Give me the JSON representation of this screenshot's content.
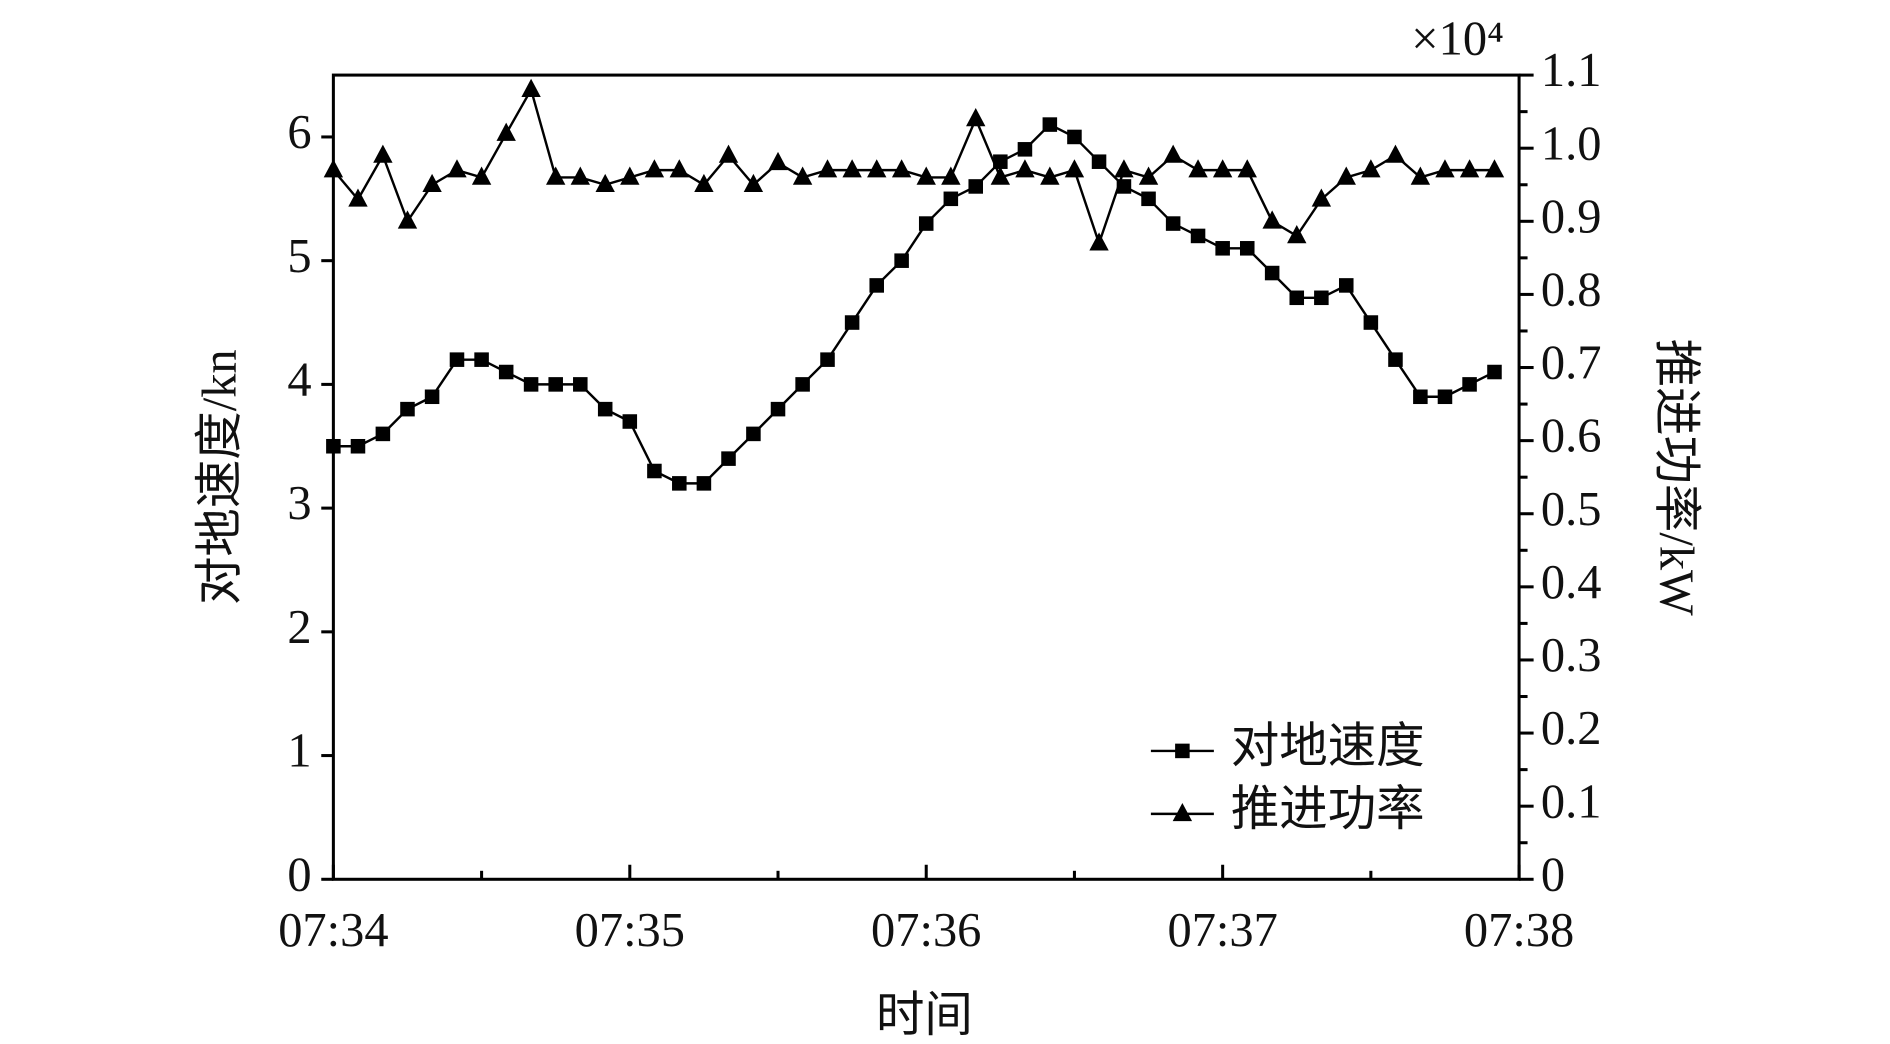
{
  "chart_data": {
    "type": "line",
    "xlabel": "时间",
    "ylabel": "对地速度/kn",
    "y2label": "推进功率/kW",
    "y2_multiplier": "×10⁴",
    "xlim": [
      0,
      4
    ],
    "xticks": [
      {
        "value": 0,
        "label": "07:34"
      },
      {
        "value": 1,
        "label": "07:35"
      },
      {
        "value": 2,
        "label": "07:36"
      },
      {
        "value": 3,
        "label": "07:37"
      },
      {
        "value": 4,
        "label": "07:38"
      }
    ],
    "xminorticks": [
      0.5,
      1.5,
      2.5,
      3.5
    ],
    "ylim": [
      0,
      6.5
    ],
    "yticks": [
      0,
      1,
      2,
      3,
      4,
      5,
      6
    ],
    "y2lim": [
      0,
      1.1
    ],
    "y2ticks": [
      0,
      0.1,
      0.2,
      0.3,
      0.4,
      0.5,
      0.6,
      0.7,
      0.8,
      0.9,
      {
        "value": 1,
        "label": "1.0"
      },
      1.1
    ],
    "y2minorticks": [
      0.05,
      0.15,
      0.25,
      0.35,
      0.45,
      0.55,
      0.65,
      0.75,
      0.85,
      0.95,
      1.05
    ],
    "legend": "lower right",
    "series": [
      {
        "name": "对地速度",
        "color": "#000000",
        "marker": "square",
        "x": [
          0,
          0.083,
          0.167,
          0.25,
          0.333,
          0.417,
          0.5,
          0.583,
          0.667,
          0.75,
          0.833,
          0.917,
          1,
          1.083,
          1.167,
          1.25,
          1.333,
          1.417,
          1.5,
          1.583,
          1.667,
          1.75,
          1.833,
          1.917,
          2,
          2.083,
          2.167,
          2.25,
          2.333,
          2.417,
          2.5,
          2.583,
          2.667,
          2.75,
          2.833,
          2.917,
          3,
          3.083,
          3.167,
          3.25,
          3.333,
          3.417,
          3.5,
          3.583,
          3.667,
          3.75,
          3.833,
          3.917
        ],
        "values": [
          3.5,
          3.5,
          3.6,
          3.8,
          3.9,
          4.2,
          4.2,
          4.1,
          4.0,
          4.0,
          4.0,
          3.8,
          3.7,
          3.3,
          3.2,
          3.2,
          3.4,
          3.6,
          3.8,
          4.0,
          4.2,
          4.5,
          4.8,
          5.0,
          5.3,
          5.5,
          5.6,
          5.8,
          5.9,
          6.1,
          6.0,
          5.8,
          5.6,
          5.5,
          5.3,
          5.2,
          5.1,
          5.1,
          4.9,
          4.7,
          4.7,
          4.8,
          4.5,
          4.2,
          3.9,
          3.9,
          4.0,
          4.1
        ]
      },
      {
        "name": "推进功率",
        "color": "#000000",
        "marker": "triangle",
        "axis": "y2",
        "x": [
          0,
          0.083,
          0.167,
          0.25,
          0.333,
          0.417,
          0.5,
          0.583,
          0.667,
          0.75,
          0.833,
          0.917,
          1,
          1.083,
          1.167,
          1.25,
          1.333,
          1.417,
          1.5,
          1.583,
          1.667,
          1.75,
          1.833,
          1.917,
          2,
          2.083,
          2.167,
          2.25,
          2.333,
          2.417,
          2.5,
          2.583,
          2.667,
          2.75,
          2.833,
          2.917,
          3,
          3.083,
          3.167,
          3.25,
          3.333,
          3.417,
          3.5,
          3.583,
          3.667,
          3.75,
          3.833,
          3.917
        ],
        "values": [
          0.97,
          0.93,
          0.99,
          0.9,
          0.95,
          0.97,
          0.96,
          1.02,
          1.08,
          0.96,
          0.96,
          0.95,
          0.96,
          0.97,
          0.97,
          0.95,
          0.99,
          0.95,
          0.98,
          0.96,
          0.97,
          0.97,
          0.97,
          0.97,
          0.96,
          0.96,
          1.04,
          0.96,
          0.97,
          0.96,
          0.97,
          0.87,
          0.97,
          0.96,
          0.99,
          0.97,
          0.97,
          0.97,
          0.9,
          0.88,
          0.93,
          0.96,
          0.97,
          0.99,
          0.96,
          0.97,
          0.97,
          0.97
        ]
      }
    ]
  }
}
